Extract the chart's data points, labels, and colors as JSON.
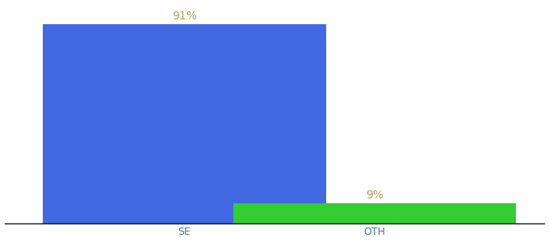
{
  "categories": [
    "SE",
    "OTH"
  ],
  "values": [
    91,
    9
  ],
  "bar_colors": [
    "#4169e1",
    "#33cc33"
  ],
  "label_texts": [
    "91%",
    "9%"
  ],
  "label_color": "#b8a060",
  "ylim": [
    0,
    100
  ],
  "background_color": "#ffffff",
  "label_fontsize": 10,
  "tick_fontsize": 9,
  "bar_width": 0.55,
  "bar_positions": [
    0.35,
    0.72
  ],
  "xlim": [
    0.0,
    1.05
  ],
  "figsize": [
    6.8,
    3.0
  ],
  "dpi": 100
}
